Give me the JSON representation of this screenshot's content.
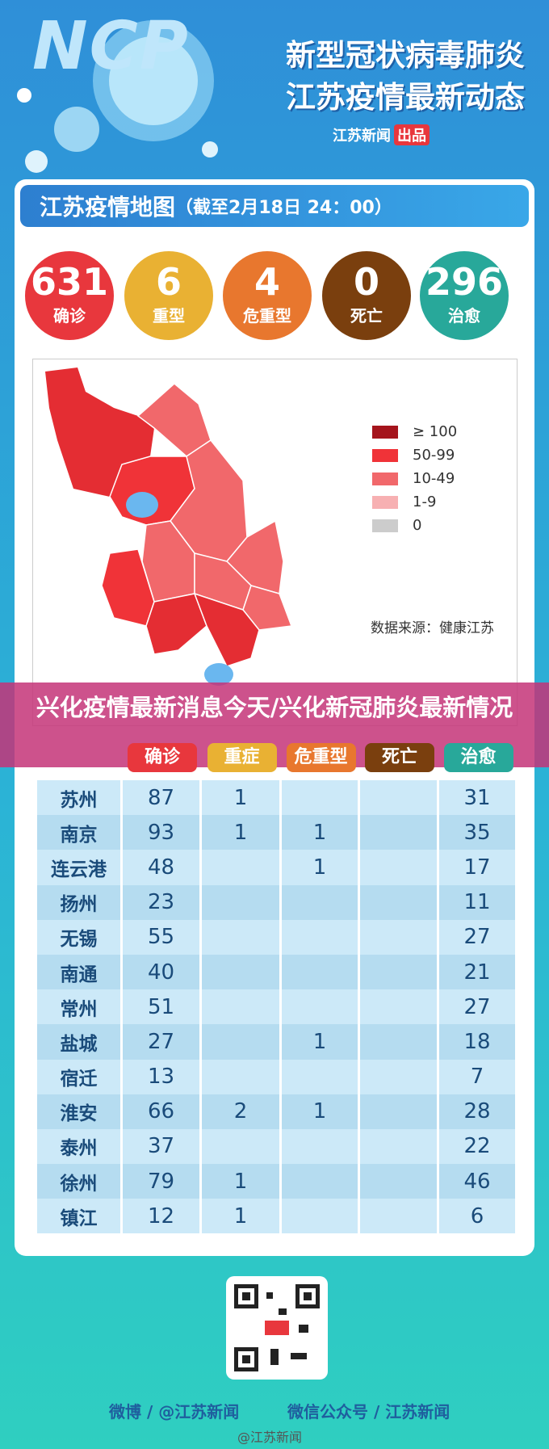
{
  "header": {
    "logo": "NCP",
    "title_line1": "新型冠状病毒肺炎",
    "title_line2": "江苏疫情最新动态",
    "source": "江苏新闻",
    "source_badge": "出品"
  },
  "panel": {
    "title": "江苏疫情地图",
    "date": "（截至2月18日 24：00）"
  },
  "stats": [
    {
      "value": 631,
      "label": "确诊",
      "color": "#e8373d"
    },
    {
      "value": 6,
      "label": "重型",
      "color": "#e9b133"
    },
    {
      "value": 4,
      "label": "危重型",
      "color": "#e8772e"
    },
    {
      "value": 0,
      "label": "死亡",
      "color": "#7a3f0e"
    },
    {
      "value": 296,
      "label": "治愈",
      "color": "#28a89a"
    }
  ],
  "legend": [
    {
      "label": "≥ 100",
      "color": "#a5141c"
    },
    {
      "label": "50-99",
      "color": "#f03338"
    },
    {
      "label": "10-49",
      "color": "#f1686b"
    },
    {
      "label": "1-9",
      "color": "#f7b0b2"
    },
    {
      "label": "0",
      "color": "#cccccc"
    }
  ],
  "map_source": "数据来源：健康江苏",
  "overlay": "兴化疫情最新消息今天/兴化新冠肺炎最新情况",
  "table": {
    "headers": [
      "确诊",
      "重症",
      "危重型",
      "死亡",
      "治愈"
    ],
    "rows": [
      [
        "苏州",
        87,
        1,
        null,
        null,
        31
      ],
      [
        "南京",
        93,
        1,
        1,
        null,
        35
      ],
      [
        "连云港",
        48,
        null,
        1,
        null,
        17
      ],
      [
        "扬州",
        23,
        null,
        null,
        null,
        11
      ],
      [
        "无锡",
        55,
        null,
        null,
        null,
        27
      ],
      [
        "南通",
        40,
        null,
        null,
        null,
        21
      ],
      [
        "常州",
        51,
        null,
        null,
        null,
        27
      ],
      [
        "盐城",
        27,
        null,
        1,
        null,
        18
      ],
      [
        "宿迁",
        13,
        null,
        null,
        null,
        7
      ],
      [
        "淮安",
        66,
        2,
        1,
        null,
        28
      ],
      [
        "泰州",
        37,
        null,
        null,
        null,
        22
      ],
      [
        "徐州",
        79,
        1,
        null,
        null,
        46
      ],
      [
        "镇江",
        12,
        1,
        null,
        null,
        6
      ]
    ]
  },
  "footer": {
    "weibo": "微博 / @江苏新闻",
    "wechat": "微信公众号 / 江苏新闻",
    "watermark": "@江苏新闻"
  }
}
